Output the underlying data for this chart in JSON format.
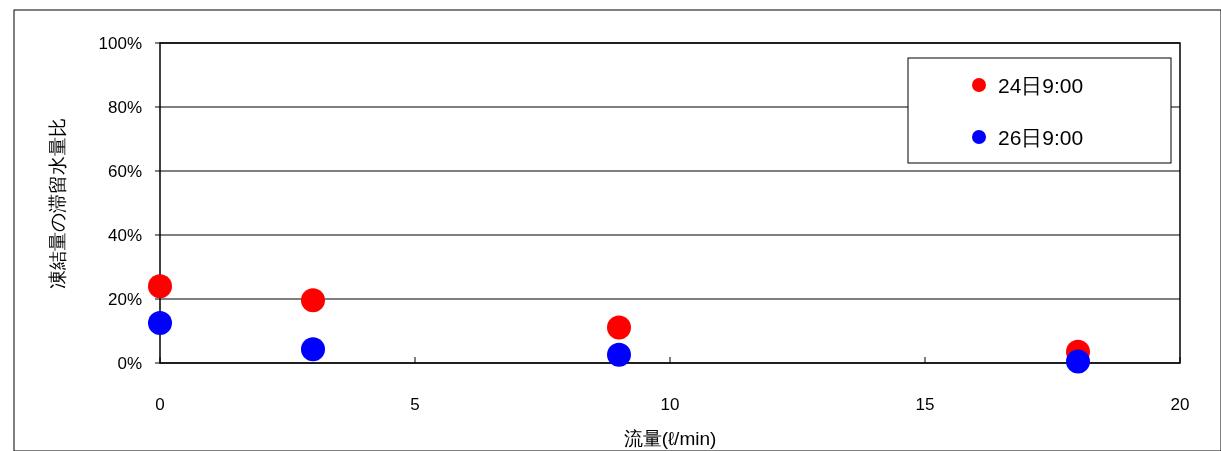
{
  "chart_data": {
    "type": "scatter",
    "xlabel": "流量(ℓ/min)",
    "ylabel": "凍結量の滞留水量比",
    "xlim": [
      0,
      20
    ],
    "xticks": [
      0,
      5,
      10,
      15,
      20
    ],
    "ylim": [
      0,
      100
    ],
    "yticks": [
      {
        "value": 0,
        "label": "0%"
      },
      {
        "value": 20,
        "label": "20%"
      },
      {
        "value": 40,
        "label": "40%"
      },
      {
        "value": 60,
        "label": "60%"
      },
      {
        "value": 80,
        "label": "80%"
      },
      {
        "value": 100,
        "label": "100%"
      }
    ],
    "grid": "y",
    "legend": "top right",
    "marker": "circle",
    "series": [
      {
        "name": "24日9:00",
        "color": "#ff0000",
        "x": [
          0,
          3,
          9,
          18
        ],
        "values": [
          24,
          19.6,
          11.1,
          3.5
        ]
      },
      {
        "name": "26日9:00",
        "color": "#0000ff",
        "x": [
          0,
          3,
          9,
          18
        ],
        "values": [
          12.5,
          4.3,
          2.6,
          0.5
        ]
      }
    ]
  }
}
